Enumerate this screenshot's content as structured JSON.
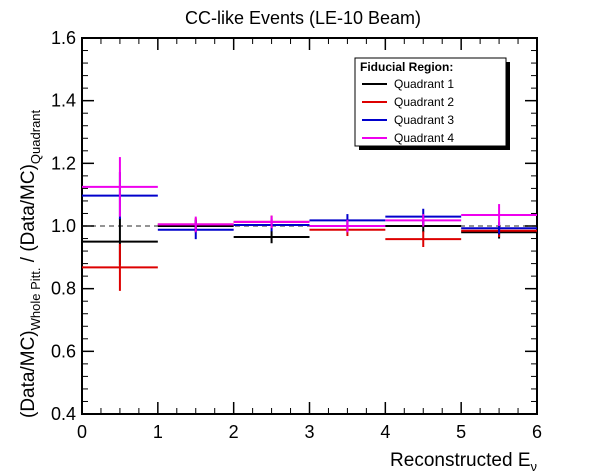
{
  "chart_data": {
    "type": "scatter",
    "title": "CC-like Events (LE-10 Beam)",
    "xlabel": {
      "main": "Reconstructed E",
      "sub": "ν"
    },
    "ylabel": {
      "p1": "(Data/MC)",
      "sub1": "Whole Pitt.",
      "p2": " / (Data/MC)",
      "sub2": "Quadrant"
    },
    "xlim": [
      0,
      6
    ],
    "ylim": [
      0.4,
      1.6
    ],
    "x_ticks": [
      "0",
      "1",
      "2",
      "3",
      "4",
      "5",
      "6"
    ],
    "y_ticks": [
      "0.4",
      "0.6",
      "0.8",
      "1.0",
      "1.2",
      "1.4",
      "1.6"
    ],
    "reference_line": 1.0,
    "legend": {
      "title": "Fiducial Region:",
      "position": "top-right"
    },
    "bins": [
      [
        0,
        1
      ],
      [
        1,
        2
      ],
      [
        2,
        3
      ],
      [
        3,
        4
      ],
      [
        4,
        5
      ],
      [
        5,
        6
      ]
    ],
    "series": [
      {
        "name": "Quadrant 1",
        "color": "#000000",
        "values": [
          0.95,
          1.0,
          0.965,
          1.0,
          1.0,
          0.98
        ],
        "errors": [
          0.075,
          0.02,
          0.02,
          0.02,
          0.02,
          0.02
        ]
      },
      {
        "name": "Quadrant 2",
        "color": "#dd0000",
        "values": [
          0.868,
          1.005,
          1.013,
          0.988,
          0.958,
          0.985
        ],
        "errors": [
          0.075,
          0.02,
          0.02,
          0.02,
          0.025,
          0.02
        ]
      },
      {
        "name": "Quadrant 3",
        "color": "#0000cc",
        "values": [
          1.097,
          0.988,
          1.003,
          1.018,
          1.03,
          0.993
        ],
        "errors": [
          0.075,
          0.03,
          0.02,
          0.02,
          0.025,
          0.02
        ]
      },
      {
        "name": "Quadrant 4",
        "color": "#ee00ee",
        "values": [
          1.125,
          1.005,
          1.013,
          1.0,
          1.018,
          1.035
        ],
        "errors": [
          0.095,
          0.025,
          0.02,
          0.02,
          0.02,
          0.035
        ]
      }
    ]
  }
}
